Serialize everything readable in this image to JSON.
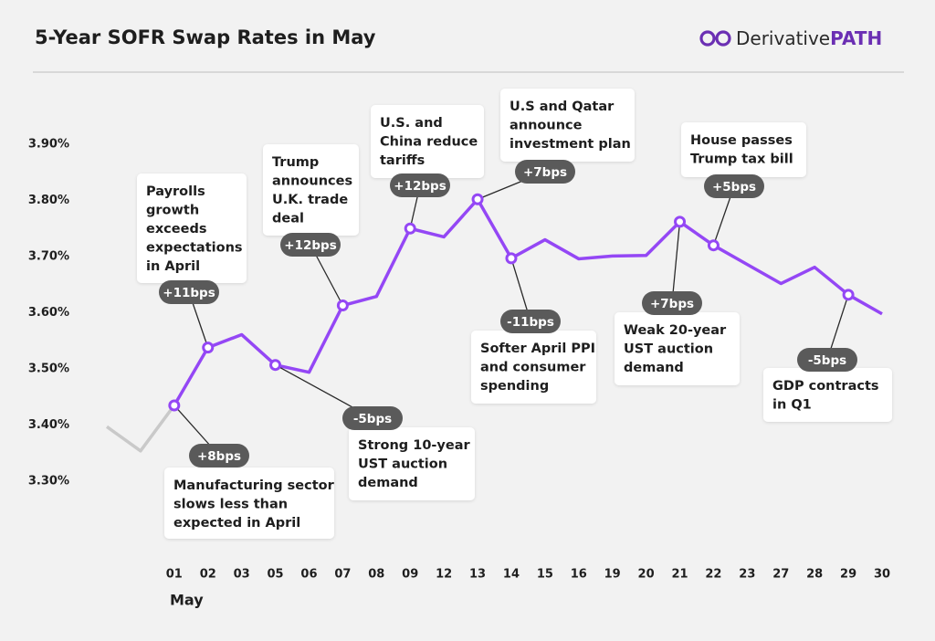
{
  "chart_data": {
    "type": "line",
    "title": "5-Year SOFR Swap Rates in May",
    "logo": {
      "text": "Derivative",
      "emphasis": "PATH"
    },
    "x_label": "May",
    "categories": [
      null,
      null,
      "01",
      "02",
      "03",
      "05",
      "06",
      "07",
      "08",
      "09",
      "12",
      "13",
      "14",
      "15",
      "16",
      "19",
      "20",
      "21",
      "22",
      "23",
      "27",
      "28",
      "29",
      "30"
    ],
    "series": [
      {
        "color": "#c9c9c9",
        "values": [
          3.397,
          3.354,
          3.435,
          null,
          null,
          null,
          null,
          null,
          null,
          null,
          null,
          null,
          null,
          null,
          null,
          null,
          null,
          null,
          null,
          null,
          null,
          null,
          null,
          null
        ]
      },
      {
        "color": "#9447f5",
        "values": [
          null,
          null,
          3.435,
          3.538,
          3.561,
          3.507,
          3.494,
          3.613,
          3.629,
          3.75,
          3.735,
          3.802,
          3.697,
          3.73,
          3.696,
          3.701,
          3.702,
          3.762,
          3.72,
          3.686,
          3.652,
          3.681,
          3.632,
          3.598
        ]
      }
    ],
    "ylim": [
      3.3,
      3.9
    ],
    "yticks": [
      {
        "value": 3.3,
        "label": "3.30%"
      },
      {
        "value": 3.4,
        "label": "3.40%"
      },
      {
        "value": 3.5,
        "label": "3.50%"
      },
      {
        "value": 3.6,
        "label": "3.60%"
      },
      {
        "value": 3.7,
        "label": "3.70%"
      },
      {
        "value": 3.8,
        "label": "3.80%"
      },
      {
        "value": 3.9,
        "label": "3.90%"
      }
    ],
    "annotations": [
      {
        "lines": [
          "Payrolls",
          "growth",
          "exceeds",
          "expectations",
          "in April"
        ],
        "change": "+11bps"
      },
      {
        "lines": [
          "Manufacturing sector",
          "slows less than",
          "expected in April"
        ],
        "change": "+8bps"
      },
      {
        "lines": [
          "Trump",
          "announces",
          "U.K. trade",
          "deal"
        ],
        "change": "+12bps"
      },
      {
        "lines": [
          "Strong 10-year",
          "UST auction",
          "demand"
        ],
        "change": "-5bps"
      },
      {
        "lines": [
          "U.S. and",
          "China reduce",
          "tariffs"
        ],
        "change": "+12bps"
      },
      {
        "lines": [
          "U.S and Qatar",
          "announce",
          "investment plan"
        ],
        "change": "+7bps"
      },
      {
        "lines": [
          "Softer April PPI",
          "and consumer",
          "spending"
        ],
        "change": "-11bps"
      },
      {
        "lines": [
          "House passes",
          "Trump tax bill"
        ],
        "change": "+5bps"
      },
      {
        "lines": [
          "Weak 20-year",
          "UST auction",
          "demand"
        ],
        "change": "+7bps"
      },
      {
        "lines": [
          "GDP contracts",
          "in Q1"
        ],
        "change": "-5bps"
      }
    ]
  }
}
